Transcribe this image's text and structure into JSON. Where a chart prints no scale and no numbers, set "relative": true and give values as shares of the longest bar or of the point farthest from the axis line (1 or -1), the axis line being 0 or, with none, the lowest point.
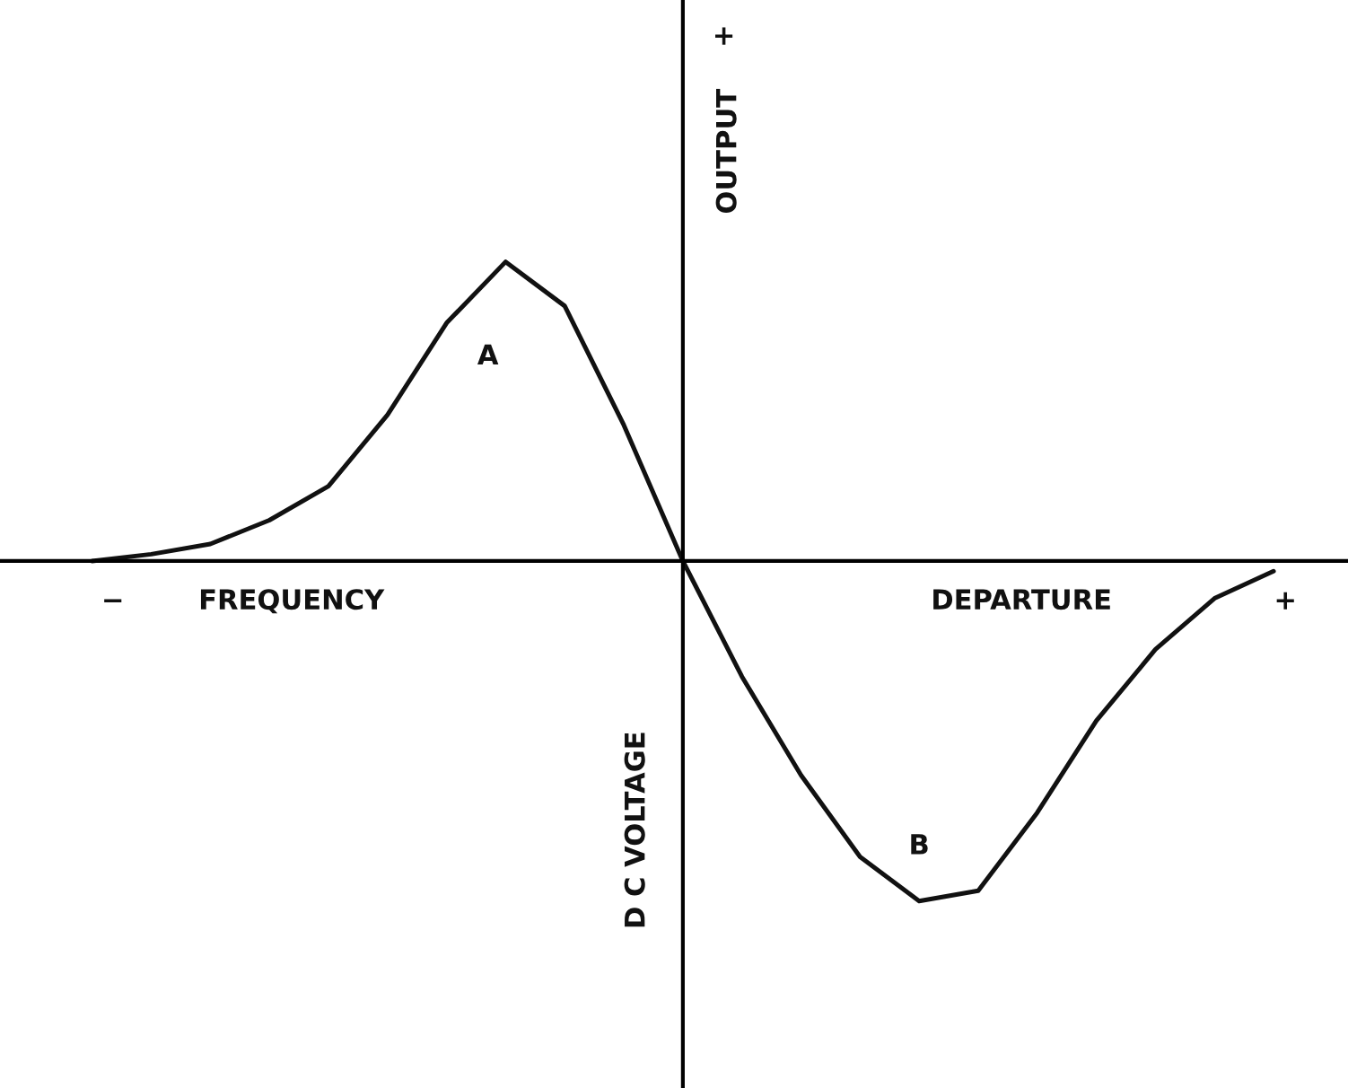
{
  "chart_data": {
    "type": "line",
    "relative": true,
    "categories": [
      null,
      null,
      null,
      null,
      null,
      null,
      null,
      null,
      null,
      null,
      null,
      null,
      null,
      null,
      null,
      null,
      null,
      null,
      null,
      null,
      null
    ],
    "series": [
      {
        "color": "#111111",
        "values": [
          0.0,
          0.02,
          0.05,
          0.12,
          0.22,
          0.43,
          0.7,
          0.88,
          0.75,
          0.4,
          0.0,
          -0.34,
          -0.63,
          -0.87,
          -1.0,
          -0.97,
          -0.74,
          -0.47,
          -0.26,
          -0.11,
          -0.03
        ]
      }
    ],
    "annotations": [
      "+",
      "OUTPUT",
      "D C VOLTAGE",
      "−",
      "FREQUENCY",
      "DEPARTURE",
      "+",
      "A",
      "B"
    ],
    "legend": false,
    "marker": "none",
    "line_style": "solid"
  }
}
